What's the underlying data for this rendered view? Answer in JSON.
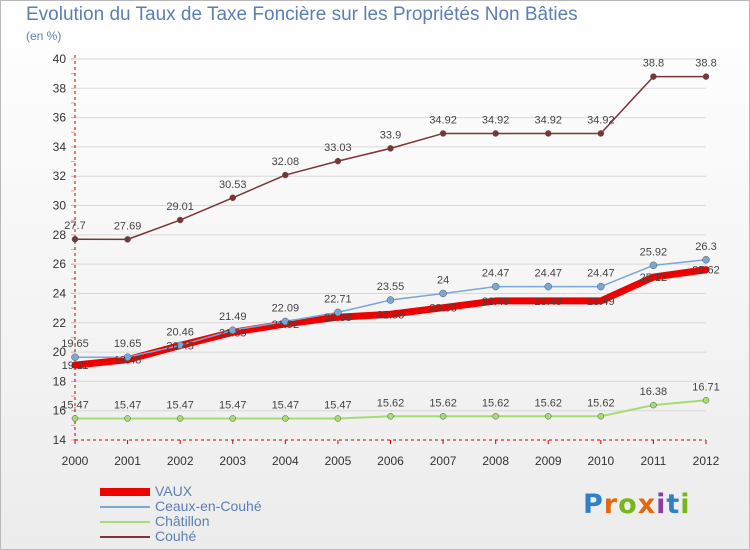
{
  "title": "Evolution du Taux de Taxe Foncière sur les Propriétés Non Bâties",
  "subtitle": "(en %)",
  "logo": {
    "text": "Proxiti",
    "letter_colors": [
      "#2f80c8",
      "#e06a12",
      "#7ab51d",
      "#e06a12",
      "#8a3fa0",
      "#2f80c8",
      "#7ab51d"
    ]
  },
  "chart_data": {
    "type": "line",
    "title": "Evolution du Taux de Taxe Foncière sur les Propriétés Non Bâties",
    "ylabel": "(en %)",
    "xlabel": "",
    "ylim": [
      14,
      40
    ],
    "yticks": [
      14,
      16,
      18,
      20,
      22,
      24,
      26,
      28,
      30,
      32,
      34,
      36,
      38,
      40
    ],
    "grid": "horizontal",
    "legend_position": "bottom-left",
    "categories": [
      "2000",
      "2001",
      "2002",
      "2003",
      "2004",
      "2005",
      "2006",
      "2007",
      "2008",
      "2009",
      "2010",
      "2011",
      "2012"
    ],
    "series": [
      {
        "name": "VAUX",
        "color": "#ee0000",
        "values": [
          19.11,
          19.48,
          20.45,
          21.35,
          21.92,
          22.38,
          22.58,
          23.03,
          23.49,
          23.49,
          23.49,
          25.12,
          25.62
        ]
      },
      {
        "name": "Ceaux-en-Couhé",
        "color": "#7aa8d4",
        "values": [
          19.65,
          19.65,
          20.46,
          21.49,
          22.09,
          22.71,
          23.55,
          24.0,
          24.47,
          24.47,
          24.47,
          25.92,
          26.3
        ]
      },
      {
        "name": "Châtillon",
        "color": "#a6dc74",
        "values": [
          15.47,
          15.47,
          15.47,
          15.47,
          15.47,
          15.47,
          15.62,
          15.62,
          15.62,
          15.62,
          15.62,
          16.38,
          16.71
        ]
      },
      {
        "name": "Couhé",
        "color": "#7b3535",
        "values": [
          27.7,
          27.69,
          29.01,
          30.53,
          32.08,
          33.03,
          33.9,
          34.92,
          34.92,
          34.92,
          34.92,
          38.8,
          38.8
        ]
      }
    ],
    "point_labels": {
      "VAUX": [
        "19.11",
        "19.48",
        "20.45",
        "21.35",
        "21.92",
        "22.38",
        "22.58",
        "23.03",
        "23.49",
        "23.49",
        "23.49",
        "25.12",
        "25.62"
      ],
      "Ceaux-en-Couhé": [
        "19.65",
        "19.65",
        "20.46",
        "21.49",
        "22.09",
        "22.71",
        "23.55",
        "24",
        "24.47",
        "24.47",
        "24.47",
        "25.92",
        "26.3"
      ],
      "Châtillon": [
        "15.47",
        "15.47",
        "15.47",
        "15.47",
        "15.47",
        "15.47",
        "15.62",
        "15.62",
        "15.62",
        "15.62",
        "15.62",
        "16.38",
        "16.71"
      ],
      "Couhé": [
        "27.7",
        "27.69",
        "29.01",
        "30.53",
        "32.08",
        "33.03",
        "33.9",
        "34.92",
        "34.92",
        "34.92",
        "34.92",
        "38.8",
        "38.8"
      ]
    }
  }
}
